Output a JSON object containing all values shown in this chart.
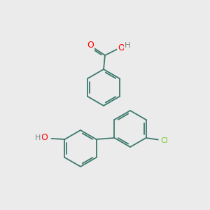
{
  "background_color": "#ebebeb",
  "bond_color": "#3d7a6e",
  "atom_colors": {
    "O": "#ff0000",
    "Cl": "#7fc82a",
    "H": "#808080"
  },
  "figsize": [
    3.0,
    3.0
  ],
  "dpi": 100
}
